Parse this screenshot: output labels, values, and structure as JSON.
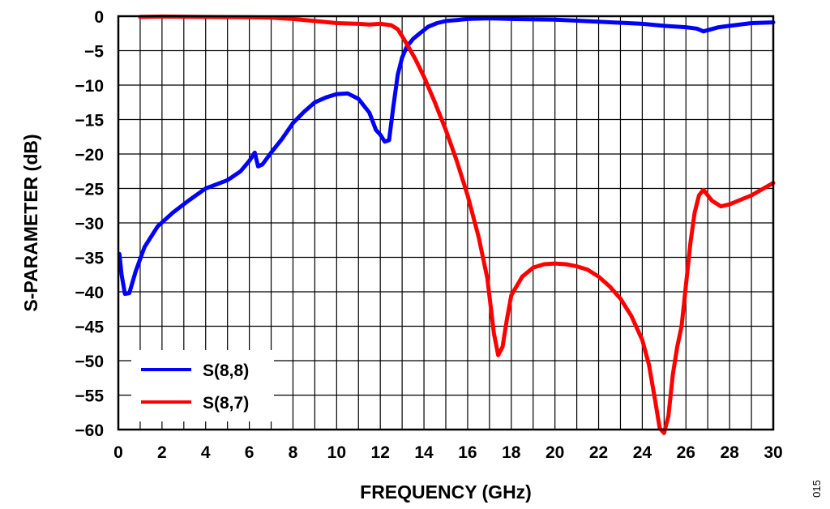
{
  "figure_id": "015",
  "chart_data": {
    "type": "line",
    "xlabel": "FREQUENCY (GHz)",
    "ylabel": "S-PARAMETER (dB)",
    "xlim": [
      0,
      30
    ],
    "ylim": [
      -60,
      0
    ],
    "x_ticks": [
      0,
      2,
      4,
      6,
      8,
      10,
      12,
      14,
      16,
      18,
      20,
      22,
      24,
      26,
      28,
      30
    ],
    "y_ticks": [
      0,
      -5,
      -10,
      -15,
      -20,
      -25,
      -30,
      -35,
      -40,
      -45,
      -50,
      -55,
      -60
    ],
    "grid": true,
    "minor_x_grid_step": 1,
    "legend_position": "bottom-left",
    "series": [
      {
        "name": "S(8,8)",
        "color": "#0000ff",
        "x": [
          0.05,
          0.15,
          0.3,
          0.5,
          0.8,
          1.2,
          1.8,
          2.5,
          3.2,
          4.0,
          5.0,
          5.6,
          6.0,
          6.25,
          6.4,
          6.6,
          7.0,
          7.5,
          8.0,
          8.5,
          9.0,
          9.5,
          10.0,
          10.5,
          11.0,
          11.5,
          11.8,
          12.0,
          12.2,
          12.4,
          12.6,
          12.8,
          13.0,
          13.2,
          13.5,
          13.8,
          14.2,
          14.6,
          15.0,
          15.5,
          16.0,
          17.0,
          18.0,
          20.0,
          22.0,
          24.0,
          25.0,
          26.0,
          26.5,
          26.8,
          27.5,
          28.0,
          29.0,
          30.0
        ],
        "y": [
          -34.5,
          -37.5,
          -40.3,
          -40.2,
          -37.0,
          -33.5,
          -30.5,
          -28.5,
          -26.8,
          -25.0,
          -23.8,
          -22.5,
          -21.0,
          -19.8,
          -21.8,
          -21.5,
          -19.8,
          -17.8,
          -15.5,
          -13.9,
          -12.5,
          -11.8,
          -11.3,
          -11.2,
          -12.0,
          -14.0,
          -16.5,
          -17.2,
          -18.2,
          -18.0,
          -13.0,
          -8.5,
          -6.0,
          -4.5,
          -3.3,
          -2.5,
          -1.5,
          -1.0,
          -0.7,
          -0.55,
          -0.4,
          -0.3,
          -0.4,
          -0.5,
          -0.8,
          -1.1,
          -1.4,
          -1.6,
          -1.8,
          -2.2,
          -1.6,
          -1.4,
          -1.0,
          -0.9
        ]
      },
      {
        "name": "S(8,7)",
        "color": "#ff0000",
        "x": [
          1.0,
          2.0,
          4.0,
          6.0,
          7.0,
          8.0,
          9.0,
          10.0,
          11.0,
          11.5,
          12.0,
          12.5,
          12.8,
          13.0,
          13.3,
          13.6,
          14.0,
          14.5,
          15.0,
          15.5,
          16.0,
          16.5,
          16.9,
          17.2,
          17.4,
          17.6,
          17.8,
          18.0,
          18.5,
          19.0,
          19.5,
          20.0,
          20.5,
          21.0,
          21.5,
          22.0,
          22.5,
          23.0,
          23.5,
          24.0,
          24.3,
          24.6,
          24.8,
          25.0,
          25.2,
          25.4,
          25.6,
          25.8,
          26.0,
          26.2,
          26.4,
          26.6,
          26.8,
          27.2,
          27.6,
          28.0,
          29.0,
          30.0
        ],
        "y": [
          -0.1,
          -0.05,
          -0.1,
          -0.15,
          -0.2,
          -0.4,
          -0.7,
          -1.0,
          -1.1,
          -1.2,
          -1.1,
          -1.3,
          -1.9,
          -2.9,
          -4.5,
          -6.2,
          -8.8,
          -12.5,
          -16.5,
          -21.0,
          -26.0,
          -32.0,
          -38.0,
          -46.0,
          -49.2,
          -48.0,
          -44.0,
          -40.5,
          -37.8,
          -36.5,
          -36.0,
          -35.9,
          -36.0,
          -36.3,
          -36.8,
          -37.8,
          -39.2,
          -41.0,
          -43.5,
          -47.0,
          -50.5,
          -56.0,
          -59.8,
          -60.5,
          -58.0,
          -52.0,
          -48.0,
          -45.0,
          -39.0,
          -33.0,
          -28.5,
          -26.0,
          -25.2,
          -26.8,
          -27.6,
          -27.3,
          -26.0,
          -24.2
        ]
      }
    ]
  }
}
